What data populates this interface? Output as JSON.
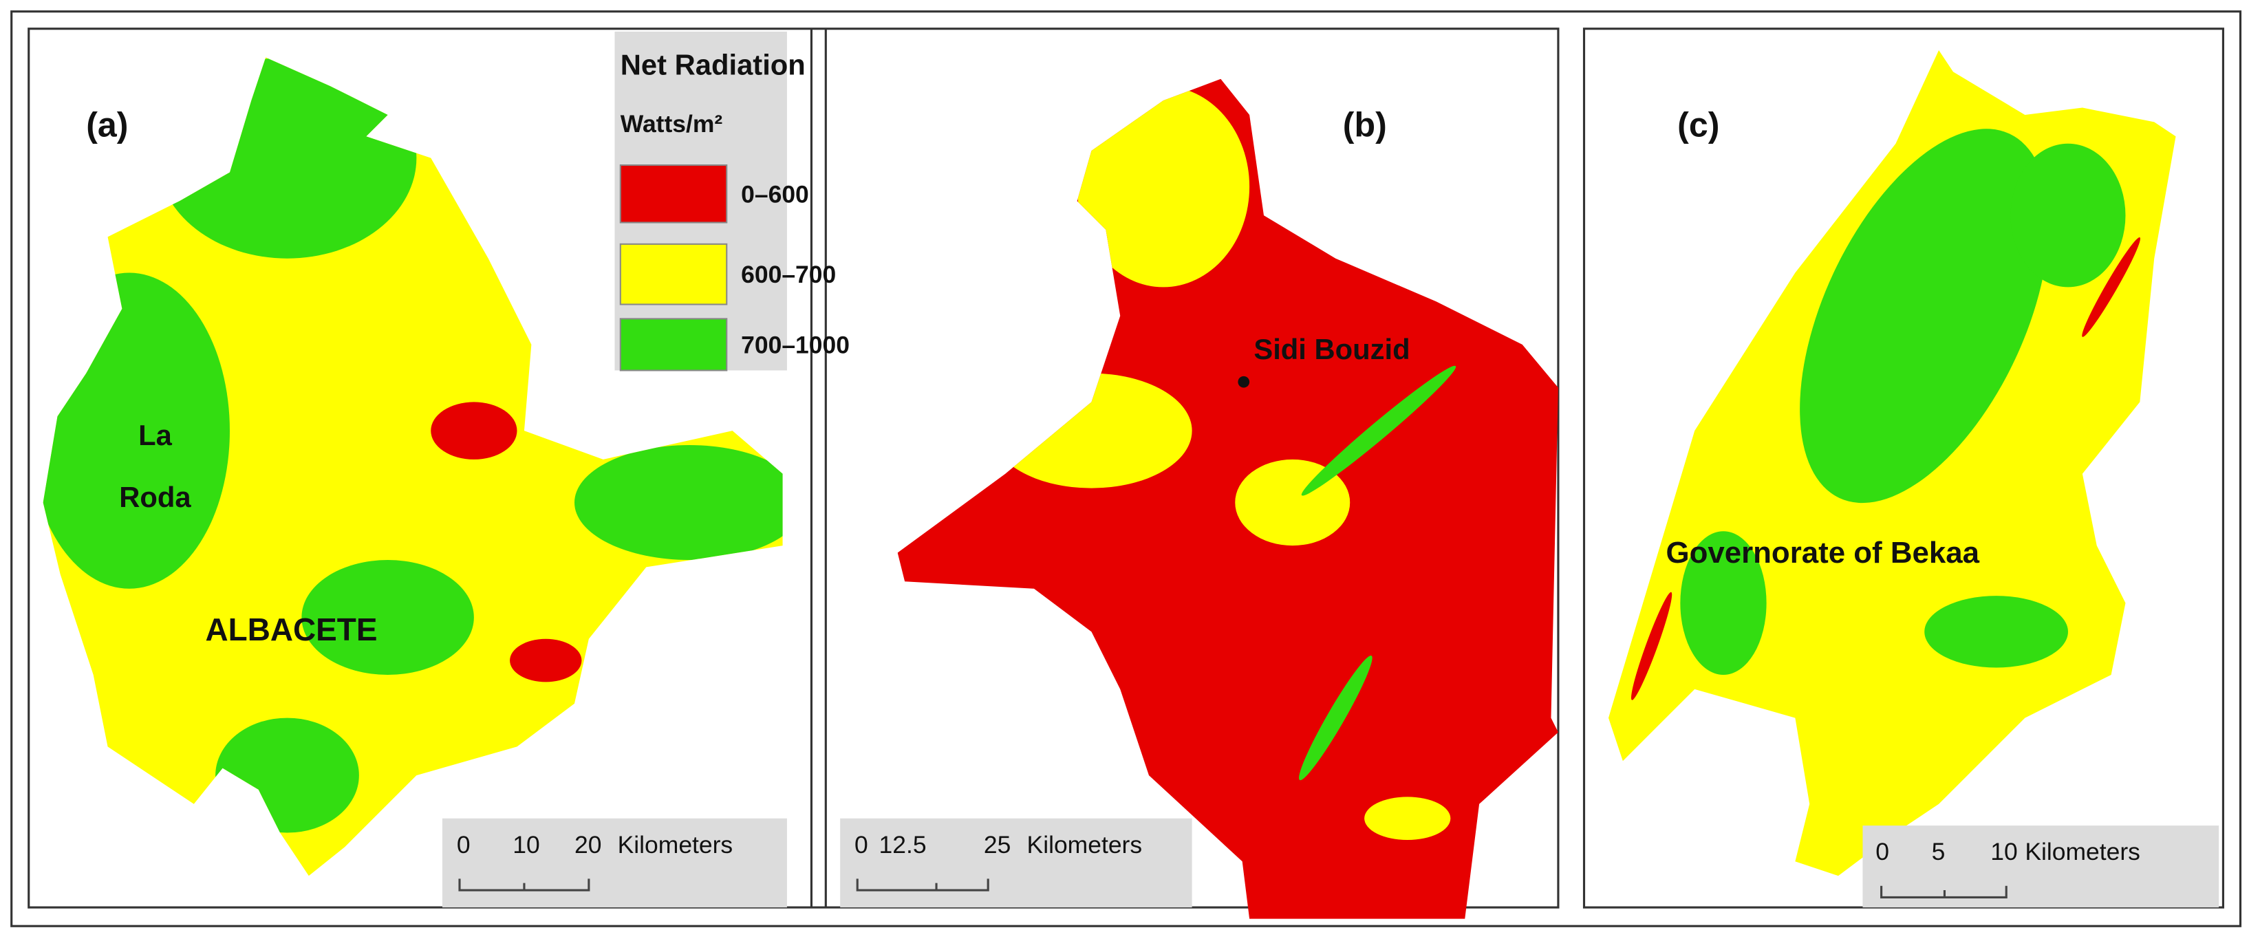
{
  "legend": {
    "title": "Net Radiation",
    "unit": "Watts/m²",
    "items": [
      {
        "label": "0–600",
        "color": "#e60000"
      },
      {
        "label": "600–700",
        "color": "#ffff00"
      },
      {
        "label": "700–1000",
        "color": "#33dd11"
      }
    ]
  },
  "panels": [
    {
      "label": "(a)",
      "places": [
        {
          "lines": [
            "La",
            "Roda"
          ]
        },
        {
          "lines": [
            "ALBACETE"
          ]
        }
      ],
      "scale": {
        "ticks": [
          "0",
          "10",
          "20"
        ],
        "unit": "Kilometers"
      }
    },
    {
      "label": "(b)",
      "places": [
        {
          "lines": [
            "Sidi Bouzid"
          ]
        }
      ],
      "scale": {
        "ticks": [
          "0",
          "12.5",
          "25"
        ],
        "unit": "Kilometers"
      }
    },
    {
      "label": "(c)",
      "places": [
        {
          "lines": [
            "Governorate of Bekaa"
          ]
        }
      ],
      "scale": {
        "ticks": [
          "0",
          "5",
          "10"
        ],
        "unit": "Kilometers"
      }
    }
  ]
}
